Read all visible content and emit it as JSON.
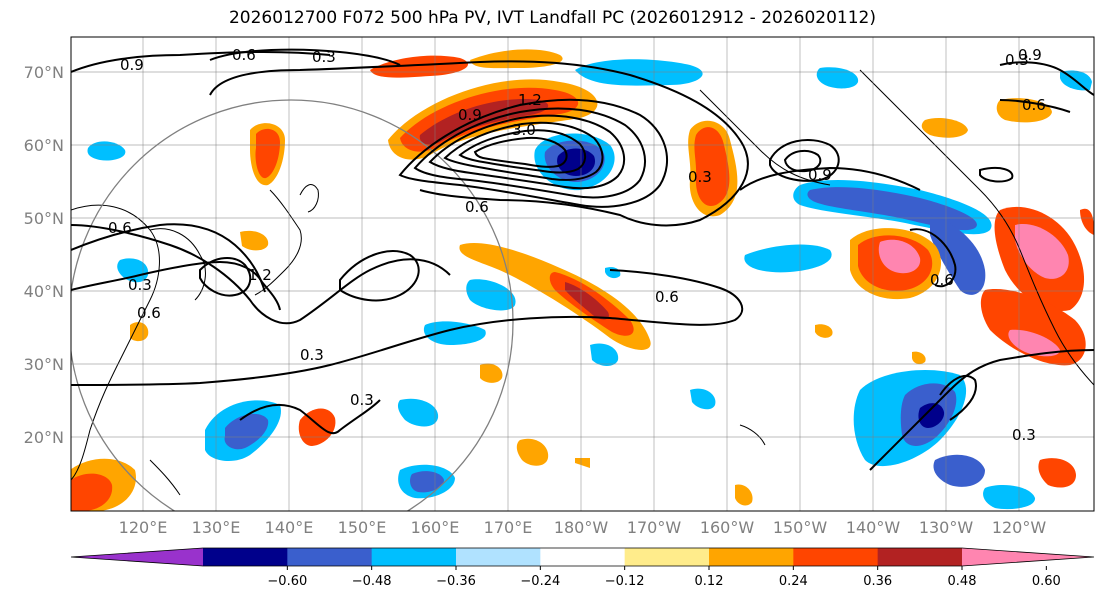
{
  "title": "2026012700 F072 500 hPa PV, IVT Landfall PC (2026012912 - 2026020112)",
  "map": {
    "lat_labels": [
      "70°N",
      "60°N",
      "50°N",
      "40°N",
      "30°N",
      "20°N"
    ],
    "lon_labels": [
      "120°E",
      "130°E",
      "140°E",
      "150°E",
      "160°E",
      "170°E",
      "180°W",
      "170°W",
      "160°W",
      "150°W",
      "140°W",
      "130°W",
      "120°W"
    ],
    "contour_labels": [
      "0.9",
      "0.6",
      "0.3",
      "0.9",
      "1.2",
      "3.0",
      "0.6",
      "0.3",
      "0.9",
      "0.6",
      "0.3",
      "0.6",
      "0.6",
      "1.2",
      "0.9",
      "0.3",
      "0.6",
      "0.3",
      "0.3",
      "0.3"
    ]
  },
  "colorbar": {
    "ticks": [
      "−0.60",
      "−0.48",
      "−0.36",
      "−0.24",
      "−0.12",
      "0.12",
      "0.24",
      "0.36",
      "0.48",
      "0.60"
    ],
    "colors": [
      "#9932cc",
      "#00008b",
      "#3a5fcd",
      "#00bfff",
      "#b0e2ff",
      "#ffffff",
      "#ffec8b",
      "#ffa500",
      "#ff4500",
      "#b22222",
      "#ff85b0"
    ]
  }
}
